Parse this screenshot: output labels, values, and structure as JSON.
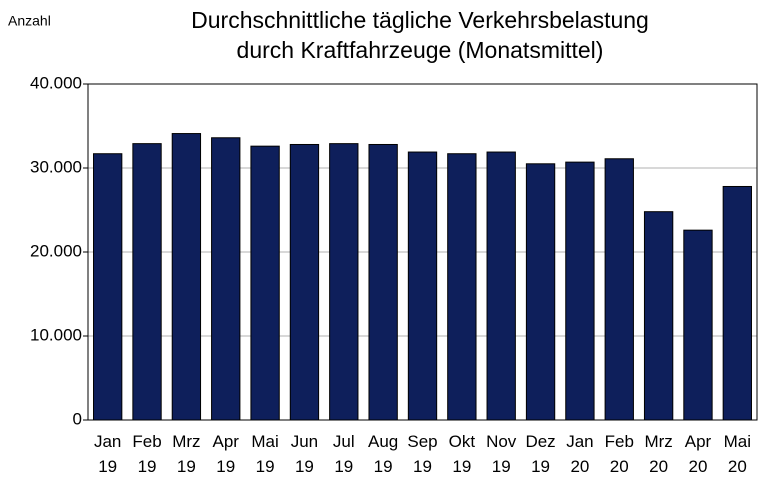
{
  "chart_data": {
    "type": "bar",
    "title": [
      "Durchschnittliche tägliche Verkehrsbelastung",
      "durch Kraftfahrzeuge (Monatsmittel)"
    ],
    "y_label": "Anzahl",
    "categories": [
      "Jan 19",
      "Feb 19",
      "Mrz 19",
      "Apr 19",
      "Mai 19",
      "Jun 19",
      "Jul 19",
      "Aug 19",
      "Sep 19",
      "Okt 19",
      "Nov 19",
      "Dez 19",
      "Jan 20",
      "Feb 20",
      "Mrz 20",
      "Apr 20",
      "Mai 20"
    ],
    "values": [
      31700,
      32900,
      34100,
      33600,
      32600,
      32800,
      32900,
      32800,
      31900,
      31700,
      31900,
      30500,
      30700,
      31100,
      24800,
      22600,
      27800
    ],
    "color": "#0e1f5b",
    "ylim": [
      0,
      40000
    ],
    "yticks": [
      0,
      {
        "value": 10000,
        "label": "10.000"
      },
      {
        "value": 20000,
        "label": "20.000"
      },
      {
        "value": 30000,
        "label": "30.000"
      },
      {
        "value": 40000,
        "label": "40.000"
      }
    ],
    "grid": true
  }
}
